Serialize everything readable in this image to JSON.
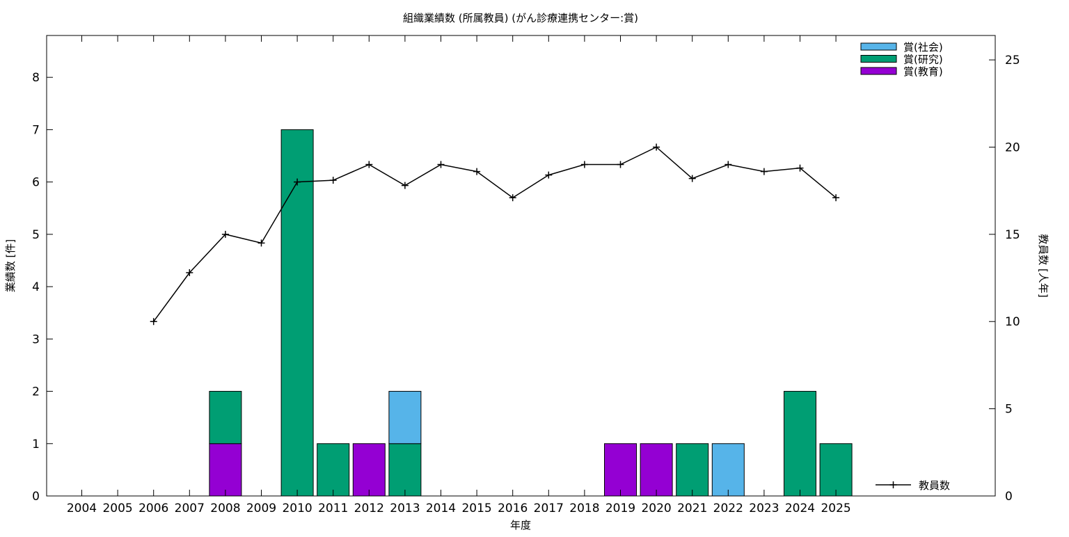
{
  "chart_data": {
    "type": "bar",
    "title": "組織業績数 (所属教員) (がん診療連携センター:賞)",
    "xlabel": "年度",
    "ylabel": "業績数 [件]",
    "y2label": "教員数 [人年]",
    "categories": [
      "2004",
      "2005",
      "2006",
      "2007",
      "2008",
      "2009",
      "2010",
      "2011",
      "2012",
      "2013",
      "2014",
      "2015",
      "2016",
      "2017",
      "2018",
      "2019",
      "2020",
      "2021",
      "2022",
      "2023",
      "2024",
      "2025"
    ],
    "ylim": [
      0,
      8.8
    ],
    "y2lim": [
      0,
      26.4
    ],
    "yticks": [
      0,
      1,
      2,
      3,
      4,
      5,
      6,
      7,
      8
    ],
    "y2ticks": [
      0,
      5,
      10,
      15,
      20,
      25
    ],
    "stacked": true,
    "series": [
      {
        "name": "賞(教育)",
        "color": "#9400d3",
        "values": [
          0,
          0,
          0,
          0,
          1,
          0,
          0,
          0,
          1,
          0,
          0,
          0,
          0,
          0,
          0,
          1,
          1,
          0,
          0,
          0,
          0,
          0
        ]
      },
      {
        "name": "賞(研究)",
        "color": "#009e73",
        "values": [
          0,
          0,
          0,
          0,
          1,
          0,
          7,
          1,
          0,
          1,
          0,
          0,
          0,
          0,
          0,
          0,
          0,
          1,
          0,
          0,
          2,
          1
        ]
      },
      {
        "name": "賞(社会)",
        "color": "#56b4e9",
        "values": [
          0,
          0,
          0,
          0,
          0,
          0,
          0,
          0,
          0,
          1,
          0,
          0,
          0,
          0,
          0,
          0,
          0,
          0,
          1,
          0,
          0,
          0
        ]
      }
    ],
    "line_series": {
      "name": "教員数",
      "color": "#000000",
      "axis": "y2",
      "x": [
        "2006",
        "2007",
        "2008",
        "2009",
        "2010",
        "2011",
        "2012",
        "2013",
        "2014",
        "2015",
        "2016",
        "2017",
        "2018",
        "2019",
        "2020",
        "2021",
        "2022",
        "2023",
        "2024",
        "2025"
      ],
      "values": [
        10,
        12.8,
        15,
        14.5,
        18,
        18.1,
        19,
        17.8,
        19,
        18.6,
        17.1,
        18.4,
        19,
        19,
        20,
        18.2,
        19,
        18.6,
        18.8,
        17.1
      ]
    },
    "legend_position": "top-right",
    "grid": false
  }
}
